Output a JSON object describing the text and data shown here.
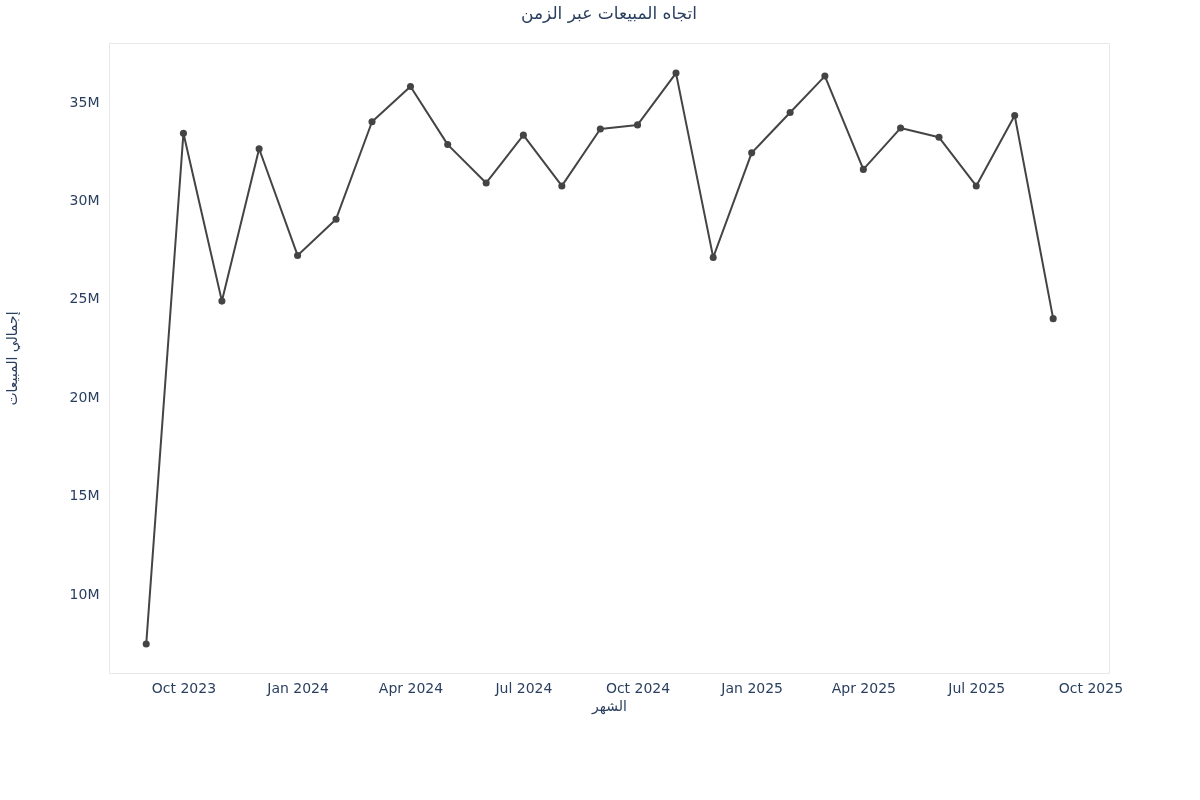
{
  "chart_data": {
    "type": "line",
    "title": "اتجاه المبيعات عبر الزمن",
    "xlabel": "الشهر",
    "ylabel": "إجمالي المبيعات",
    "x": [
      "2023-09-01",
      "2023-10-01",
      "2023-11-01",
      "2023-12-01",
      "2024-01-01",
      "2024-02-01",
      "2024-03-01",
      "2024-04-01",
      "2024-05-01",
      "2024-06-01",
      "2024-07-01",
      "2024-08-01",
      "2024-09-01",
      "2024-10-01",
      "2024-11-01",
      "2024-12-01",
      "2025-01-01",
      "2025-02-01",
      "2025-03-01",
      "2025-04-01",
      "2025-05-01",
      "2025-06-01",
      "2025-07-01",
      "2025-08-01",
      "2025-09-01"
    ],
    "series": [
      {
        "color": "#444444",
        "values": [
          7.47,
          33.42,
          24.89,
          32.63,
          27.21,
          29.05,
          34.0,
          35.79,
          32.84,
          30.89,
          33.32,
          30.74,
          33.63,
          33.84,
          36.47,
          27.11,
          32.42,
          34.47,
          36.32,
          31.58,
          33.68,
          33.21,
          30.74,
          34.32,
          24.0
        ]
      }
    ],
    "xlim": [
      "2023-08-02",
      "2025-10-16"
    ],
    "xticks": [
      {
        "value": "2023-10-01",
        "label": "Oct 2023"
      },
      {
        "value": "2024-01-01",
        "label": "Jan 2024"
      },
      {
        "value": "2024-04-01",
        "label": "Apr 2024"
      },
      {
        "value": "2024-07-01",
        "label": "Jul 2024"
      },
      {
        "value": "2024-10-01",
        "label": "Oct 2024"
      },
      {
        "value": "2025-01-01",
        "label": "Jan 2025"
      },
      {
        "value": "2025-04-01",
        "label": "Apr 2025"
      },
      {
        "value": "2025-07-01",
        "label": "Jul 2025"
      },
      {
        "value": "2025-10-01",
        "label": "Oct 2025"
      }
    ],
    "ylim": [
      6,
      38
    ],
    "yticks": [
      {
        "value": 10,
        "label": "10M"
      },
      {
        "value": 15,
        "label": "15M"
      },
      {
        "value": 20,
        "label": "20M"
      },
      {
        "value": 25,
        "label": "25M"
      },
      {
        "value": 30,
        "label": "30M"
      },
      {
        "value": 35,
        "label": "35M"
      }
    ],
    "grid": false,
    "marker": "circle",
    "line_style": "solid"
  }
}
